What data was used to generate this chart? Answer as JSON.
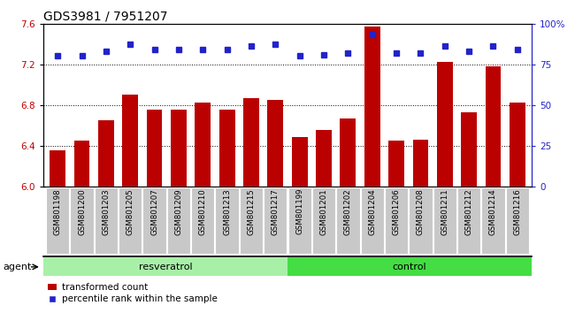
{
  "title": "GDS3981 / 7951207",
  "samples": [
    "GSM801198",
    "GSM801200",
    "GSM801203",
    "GSM801205",
    "GSM801207",
    "GSM801209",
    "GSM801210",
    "GSM801213",
    "GSM801215",
    "GSM801217",
    "GSM801199",
    "GSM801201",
    "GSM801202",
    "GSM801204",
    "GSM801206",
    "GSM801208",
    "GSM801211",
    "GSM801212",
    "GSM801214",
    "GSM801216"
  ],
  "bar_values": [
    6.35,
    6.45,
    6.65,
    6.9,
    6.75,
    6.75,
    6.82,
    6.75,
    6.87,
    6.85,
    6.48,
    6.55,
    6.67,
    7.57,
    6.45,
    6.46,
    7.22,
    6.73,
    7.18,
    6.82
  ],
  "dot_values": [
    80,
    80,
    83,
    87,
    84,
    84,
    84,
    84,
    86,
    87,
    80,
    81,
    82,
    93,
    82,
    82,
    86,
    83,
    86,
    84
  ],
  "group1_label": "resveratrol",
  "group2_label": "control",
  "group1_count": 10,
  "group2_count": 10,
  "ylim_left": [
    6.0,
    7.6
  ],
  "ylim_right": [
    0,
    100
  ],
  "yticks_left": [
    6.0,
    6.4,
    6.8,
    7.2,
    7.6
  ],
  "yticks_right": [
    0,
    25,
    50,
    75,
    100
  ],
  "ytick_labels_right": [
    "0",
    "25",
    "50",
    "75",
    "100%"
  ],
  "bar_color": "#bb0000",
  "dot_color": "#2222cc",
  "agent_label": "agent",
  "legend_bar": "transformed count",
  "legend_dot": "percentile rank within the sample",
  "background_plot": "#ffffff",
  "ticklabel_bg": "#c8c8c8",
  "group1_bg": "#a8f0a8",
  "group2_bg": "#44dd44",
  "title_fontsize": 10,
  "axis_label_fontsize": 7.5,
  "bar_width": 0.65,
  "dot_size": 5
}
